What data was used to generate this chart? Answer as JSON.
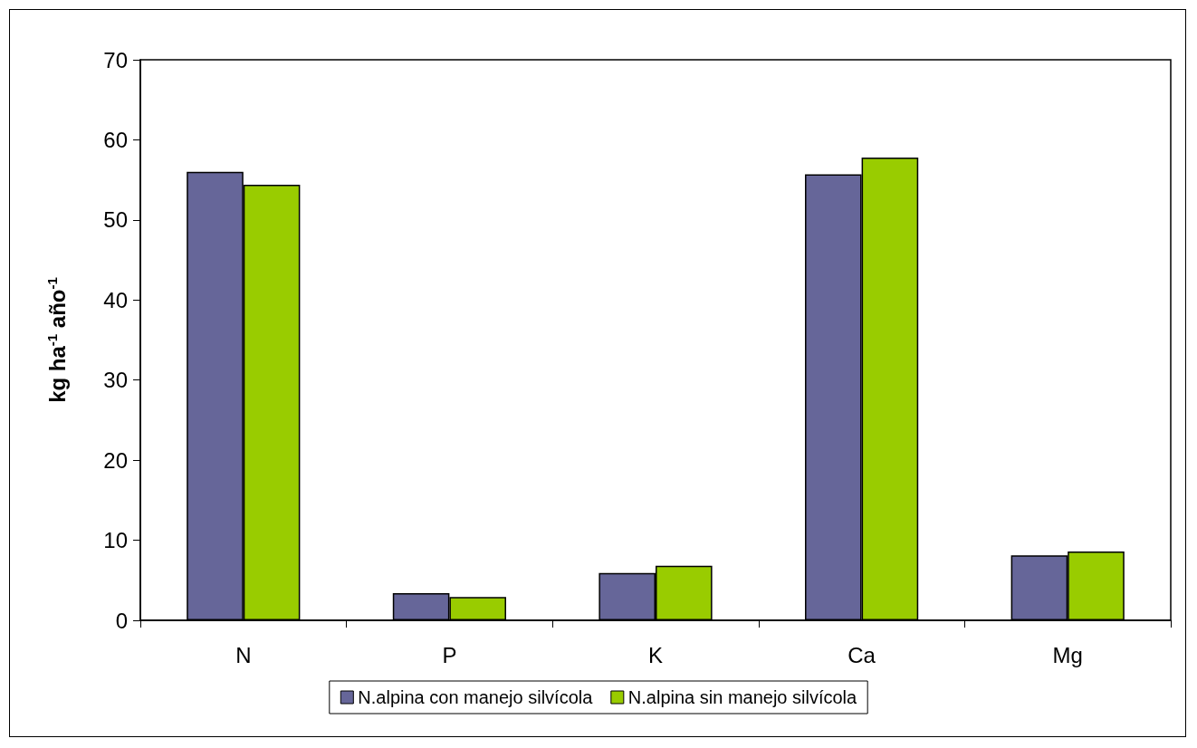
{
  "chart_data": {
    "type": "bar",
    "ylabel": "kg ha$^{-1}$ año$^{-1}$",
    "categories": [
      "N",
      "P",
      "K",
      "Ca",
      "Mg"
    ],
    "series": [
      {
        "name": "N.alpina con manejo silvícola",
        "color": "#666699",
        "values": [
          56.0,
          3.4,
          5.9,
          55.7,
          8.1
        ]
      },
      {
        "name": "N.alpina sin manejo silvícola",
        "color": "#99cc00",
        "values": [
          54.4,
          2.9,
          6.8,
          57.8,
          8.6
        ]
      }
    ],
    "ylim": [
      0,
      70
    ],
    "yticks": [
      0,
      10,
      20,
      30,
      40,
      50,
      60,
      70
    ],
    "grid": false,
    "legend": "bottom"
  }
}
